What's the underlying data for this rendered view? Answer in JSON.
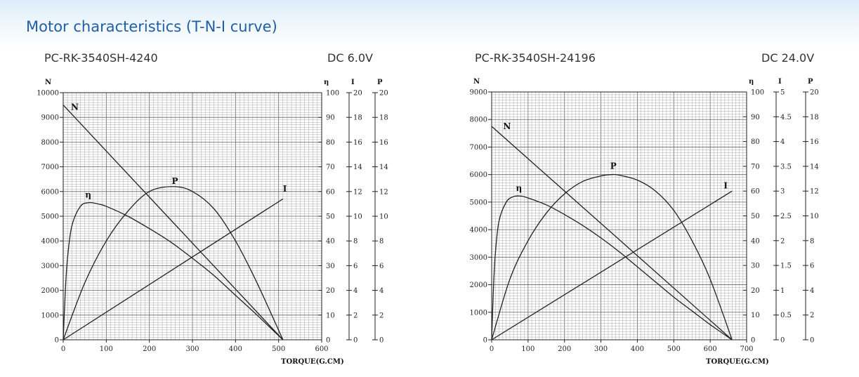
{
  "page_title": "Motor characteristics (T-N-I curve)",
  "charts": [
    {
      "model": "PC-RK-3540SH-4240",
      "voltage": "DC 6.0V"
    },
    {
      "model": "PC-RK-3540SH-24196",
      "voltage": "DC 24.0V"
    }
  ],
  "chart_data": [
    {
      "type": "line",
      "xlabel": "TORQUE(G.CM)",
      "ylabel": "N",
      "xlim": [
        0,
        600
      ],
      "xticks": [
        "0",
        "100",
        "200",
        "300",
        "400",
        "500",
        "600"
      ],
      "ylim": [
        0,
        10000
      ],
      "yticks": [
        "0",
        "1000",
        "2000",
        "3000",
        "4000",
        "5000",
        "6000",
        "7000",
        "8000",
        "9000",
        "10000"
      ],
      "right_axes": [
        {
          "label": "η",
          "ticks": [
            "0",
            "10",
            "20",
            "30",
            "40",
            "50",
            "60",
            "70",
            "80",
            "90",
            "100"
          ]
        },
        {
          "label": "I",
          "ticks": [
            "0",
            "2",
            "4",
            "6",
            "8",
            "10",
            "12",
            "14",
            "16",
            "18",
            "20"
          ]
        },
        {
          "label": "P",
          "ticks": [
            "0",
            "2",
            "4",
            "6",
            "8",
            "10",
            "12",
            "14",
            "16",
            "18",
            "20"
          ]
        }
      ],
      "grid": true,
      "series": [
        {
          "name": "N",
          "x": [
            0,
            510
          ],
          "values": [
            9500,
            0
          ]
        },
        {
          "name": "I",
          "x": [
            0,
            510
          ],
          "values": [
            0,
            5700
          ]
        },
        {
          "name": "P",
          "x": [
            0,
            50,
            100,
            150,
            200,
            255,
            300,
            350,
            400,
            450,
            510
          ],
          "values": [
            0,
            2300,
            4000,
            5200,
            6000,
            6200,
            6000,
            5300,
            4000,
            2300,
            0
          ]
        },
        {
          "name": "η",
          "x": [
            0,
            5,
            10,
            20,
            40,
            60,
            80,
            100,
            150,
            200,
            250,
            300,
            350,
            400,
            450,
            510
          ],
          "values": [
            0,
            2000,
            3300,
            4600,
            5400,
            5550,
            5500,
            5400,
            5000,
            4500,
            3950,
            3300,
            2600,
            1800,
            1000,
            0
          ]
        }
      ]
    },
    {
      "type": "line",
      "xlabel": "TORQUE(G.CM)",
      "ylabel": "N",
      "xlim": [
        0,
        700
      ],
      "xticks": [
        "0",
        "100",
        "200",
        "300",
        "400",
        "500",
        "600",
        "700"
      ],
      "ylim": [
        0,
        9000
      ],
      "yticks": [
        "0",
        "1000",
        "2000",
        "3000",
        "4000",
        "5000",
        "6000",
        "7000",
        "8000",
        "9000"
      ],
      "right_axes": [
        {
          "label": "η",
          "ticks": [
            "0",
            "10",
            "20",
            "30",
            "40",
            "50",
            "60",
            "70",
            "80",
            "90",
            "100"
          ]
        },
        {
          "label": "I",
          "ticks": [
            "0",
            "0.5",
            "1",
            "1.5",
            "2",
            "2.5",
            "3",
            "3.5",
            "4",
            "4.5",
            "5"
          ]
        },
        {
          "label": "P",
          "ticks": [
            "0",
            "2",
            "4",
            "6",
            "8",
            "10",
            "12",
            "14",
            "16",
            "18",
            "20"
          ]
        }
      ],
      "grid": true,
      "series": [
        {
          "name": "N",
          "x": [
            0,
            660
          ],
          "values": [
            7750,
            0
          ]
        },
        {
          "name": "I",
          "x": [
            0,
            660
          ],
          "values": [
            0,
            5400
          ]
        },
        {
          "name": "P",
          "x": [
            0,
            50,
            100,
            150,
            200,
            250,
            300,
            330,
            350,
            400,
            450,
            500,
            550,
            600,
            660
          ],
          "values": [
            0,
            2200,
            3600,
            4600,
            5300,
            5750,
            5950,
            6000,
            5980,
            5800,
            5400,
            4700,
            3600,
            2200,
            0
          ]
        },
        {
          "name": "η",
          "x": [
            0,
            5,
            10,
            20,
            40,
            60,
            80,
            100,
            150,
            200,
            250,
            300,
            350,
            400,
            450,
            500,
            550,
            600,
            660
          ],
          "values": [
            0,
            1900,
            3100,
            4300,
            5000,
            5200,
            5220,
            5150,
            4900,
            4550,
            4150,
            3700,
            3200,
            2650,
            2100,
            1550,
            1050,
            550,
            0
          ]
        }
      ]
    }
  ]
}
